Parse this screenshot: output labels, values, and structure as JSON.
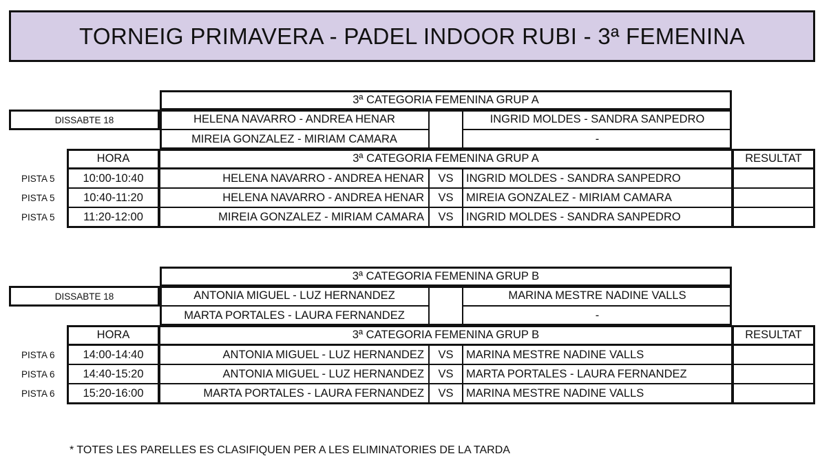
{
  "title": "TORNEIG PRIMAVERA - PADEL INDOOR RUBI - 3ª FEMENINA",
  "groups": [
    {
      "category": "3ª CATEGORIA FEMENINA GRUP A",
      "day": "DISSABTE 18",
      "pairs_left": [
        "HELENA NAVARRO - ANDREA HENAR",
        "MIREIA GONZALEZ - MIRIAM CAMARA"
      ],
      "pairs_right": [
        "INGRID MOLDES - SANDRA SANPEDRO",
        "-"
      ],
      "hora_label": "HORA",
      "resultat_label": "RESULTAT",
      "matches": [
        {
          "court": "PISTA 5",
          "time": "10:00-10:40",
          "team1": "HELENA NAVARRO - ANDREA HENAR",
          "vs": "VS",
          "team2": "INGRID MOLDES - SANDRA SANPEDRO",
          "result": ""
        },
        {
          "court": "PISTA 5",
          "time": "10:40-11:20",
          "team1": "HELENA NAVARRO - ANDREA HENAR",
          "vs": "VS",
          "team2": "MIREIA GONZALEZ - MIRIAM CAMARA",
          "result": ""
        },
        {
          "court": "PISTA 5",
          "time": "11:20-12:00",
          "team1": "MIREIA GONZALEZ - MIRIAM CAMARA",
          "vs": "VS",
          "team2": "INGRID MOLDES - SANDRA SANPEDRO",
          "result": ""
        }
      ]
    },
    {
      "category": "3ª CATEGORIA FEMENINA GRUP B",
      "day": "DISSABTE 18",
      "pairs_left": [
        "ANTONIA MIGUEL - LUZ HERNANDEZ",
        "MARTA PORTALES - LAURA FERNANDEZ"
      ],
      "pairs_right": [
        "MARINA MESTRE NADINE VALLS",
        "-"
      ],
      "hora_label": "HORA",
      "resultat_label": "RESULTAT",
      "matches": [
        {
          "court": "PISTA 6",
          "time": "14:00-14:40",
          "team1": "ANTONIA MIGUEL - LUZ HERNANDEZ",
          "vs": "VS",
          "team2": "MARINA MESTRE NADINE VALLS",
          "result": ""
        },
        {
          "court": "PISTA 6",
          "time": "14:40-15:20",
          "team1": "ANTONIA MIGUEL - LUZ HERNANDEZ",
          "vs": "VS",
          "team2": "MARTA PORTALES - LAURA FERNANDEZ",
          "result": ""
        },
        {
          "court": "PISTA 6",
          "time": "15:20-16:00",
          "team1": "MARTA PORTALES - LAURA FERNANDEZ",
          "vs": "VS",
          "team2": "MARINA MESTRE NADINE VALLS",
          "result": ""
        }
      ]
    }
  ],
  "footnote": "* TOTES LES PARELLES ES CLASIFIQUEN PER A LES ELIMINATORIES DE LA TARDA",
  "colors": {
    "title_background": "#d6cde6",
    "border": "#111111"
  }
}
